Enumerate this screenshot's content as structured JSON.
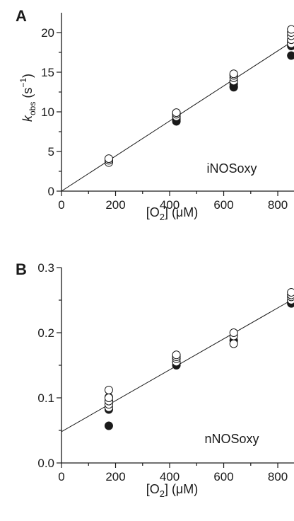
{
  "chart_data": [
    {
      "type": "scatter",
      "panel": "A",
      "annotation": "iNOSoxy",
      "xlabel": "[O2] (μM)",
      "ylabel": "kobs (s−1)",
      "xlim": [
        0,
        860
      ],
      "ylim": [
        0,
        22.5
      ],
      "xticks": [
        0,
        200,
        400,
        600,
        800
      ],
      "yticks": [
        0,
        5,
        10,
        15,
        20
      ],
      "grid": false,
      "fit_line": {
        "x": [
          0,
          850
        ],
        "y": [
          0,
          18.8
        ]
      },
      "series": [
        {
          "marker": "filled-circle",
          "x": [
            175,
            425,
            425,
            425,
            637,
            637,
            637,
            637,
            850,
            850,
            850,
            850
          ],
          "y": [
            3.9,
            9.0,
            8.8,
            9.2,
            13.2,
            13.5,
            13.9,
            13.1,
            17.1,
            18.3,
            18.7,
            19.0
          ]
        },
        {
          "marker": "open-circle",
          "x": [
            175,
            175,
            175,
            425,
            425,
            425,
            637,
            637,
            637,
            637,
            850,
            850,
            850,
            850,
            850
          ],
          "y": [
            3.6,
            3.9,
            4.1,
            9.4,
            9.7,
            9.9,
            13.9,
            14.3,
            14.6,
            14.8,
            18.6,
            19.1,
            19.6,
            20.0,
            20.4
          ]
        }
      ]
    },
    {
      "type": "scatter",
      "panel": "B",
      "annotation": "nNOSoxy",
      "xlabel": "[O2] (μM)",
      "ylabel": "",
      "xlim": [
        0,
        860
      ],
      "ylim": [
        0,
        0.3
      ],
      "xticks": [
        0,
        200,
        400,
        600,
        800
      ],
      "yticks": [
        0.0,
        0.1,
        0.2,
        0.3
      ],
      "grid": false,
      "fit_line": {
        "x": [
          0,
          850
        ],
        "y": [
          0.048,
          0.25
        ]
      },
      "series": [
        {
          "marker": "filled-circle",
          "x": [
            175,
            175,
            175,
            175,
            425,
            425,
            637,
            850,
            850
          ],
          "y": [
            0.057,
            0.082,
            0.095,
            0.101,
            0.15,
            0.155,
            0.188,
            0.245,
            0.248
          ]
        },
        {
          "marker": "open-circle",
          "x": [
            175,
            175,
            175,
            175,
            175,
            425,
            425,
            425,
            425,
            637,
            637,
            637,
            850,
            850,
            850,
            850
          ],
          "y": [
            0.085,
            0.09,
            0.095,
            0.1,
            0.112,
            0.155,
            0.16,
            0.163,
            0.166,
            0.183,
            0.195,
            0.2,
            0.25,
            0.255,
            0.258,
            0.262
          ]
        }
      ]
    }
  ]
}
